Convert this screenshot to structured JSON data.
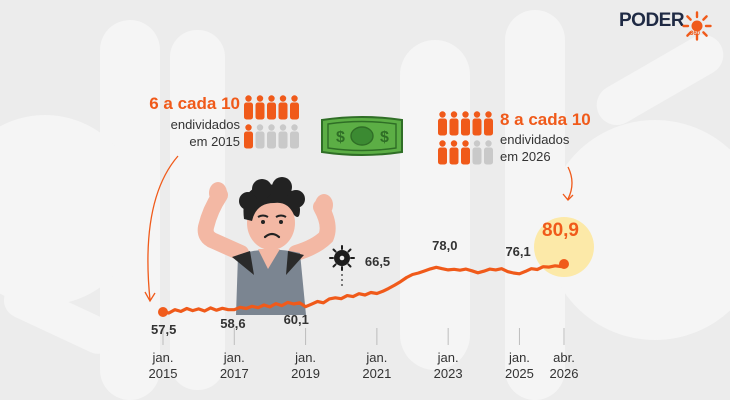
{
  "logo": {
    "word": "PODER",
    "sub": "360"
  },
  "callout_2015": {
    "big": "6 a cada 10",
    "line1": "endividados",
    "line2": "em 2015",
    "highlighted": 6,
    "total": 10
  },
  "callout_2026": {
    "big": "8 a cada 10",
    "line1": "endividados",
    "line2": "em 2026",
    "highlighted": 8,
    "total": 10
  },
  "colors": {
    "accent": "#f05a1a",
    "muted": "#c9c9c9",
    "text": "#333333",
    "highlight": "#fce9a8"
  },
  "chart_data": {
    "type": "line",
    "x_ticks": [
      {
        "date": "2015-01",
        "label": [
          "jan.",
          "2015"
        ]
      },
      {
        "date": "2017-01",
        "label": [
          "jan.",
          "2017"
        ]
      },
      {
        "date": "2019-01",
        "label": [
          "jan.",
          "2019"
        ]
      },
      {
        "date": "2021-01",
        "label": [
          "jan.",
          "2021"
        ]
      },
      {
        "date": "2023-01",
        "label": [
          "jan.",
          "2023"
        ]
      },
      {
        "date": "2025-01",
        "label": [
          "jan.",
          "2025"
        ]
      },
      {
        "date": "2026-04",
        "label": [
          "abr.",
          "2026"
        ]
      }
    ],
    "labeled_points": [
      {
        "date": "2015-01",
        "value": 57.5,
        "label": "57,5"
      },
      {
        "date": "2017-01",
        "value": 58.6,
        "label": "58,6"
      },
      {
        "date": "2019-01",
        "value": 60.1,
        "label": "60,1"
      },
      {
        "date": "2021-01",
        "value": 66.5,
        "label": "66,5"
      },
      {
        "date": "2023-01",
        "value": 78.0,
        "label": "78,0"
      },
      {
        "date": "2025-01",
        "value": 76.1,
        "label": "76,1"
      },
      {
        "date": "2026-04",
        "value": 80.9,
        "label": "80,9"
      }
    ],
    "series": [
      {
        "values": [
          [
            "2015-01",
            57.5
          ],
          [
            "2015-03",
            57.0
          ],
          [
            "2015-05",
            58.6
          ],
          [
            "2015-07",
            57.8
          ],
          [
            "2015-09",
            59.2
          ],
          [
            "2015-11",
            58.2
          ],
          [
            "2016-01",
            59.0
          ],
          [
            "2016-03",
            58.0
          ],
          [
            "2016-05",
            59.5
          ],
          [
            "2016-07",
            58.4
          ],
          [
            "2016-09",
            59.3
          ],
          [
            "2016-11",
            58.6
          ],
          [
            "2017-01",
            58.6
          ],
          [
            "2017-03",
            59.8
          ],
          [
            "2017-05",
            59.2
          ],
          [
            "2017-07",
            60.3
          ],
          [
            "2017-09",
            59.6
          ],
          [
            "2017-11",
            60.9
          ],
          [
            "2018-01",
            60.0
          ],
          [
            "2018-03",
            61.6
          ],
          [
            "2018-05",
            60.6
          ],
          [
            "2018-07",
            62.2
          ],
          [
            "2018-09",
            61.4
          ],
          [
            "2018-11",
            62.0
          ],
          [
            "2019-01",
            60.1
          ],
          [
            "2019-03",
            61.3
          ],
          [
            "2019-05",
            62.6
          ],
          [
            "2019-07",
            62.0
          ],
          [
            "2019-09",
            63.9
          ],
          [
            "2019-11",
            64.4
          ],
          [
            "2020-01",
            64.0
          ],
          [
            "2020-03",
            65.5
          ],
          [
            "2020-05",
            65.0
          ],
          [
            "2020-07",
            66.4
          ],
          [
            "2020-09",
            65.8
          ],
          [
            "2020-11",
            67.0
          ],
          [
            "2021-01",
            66.5
          ],
          [
            "2021-03",
            67.6
          ],
          [
            "2021-05",
            69.0
          ],
          [
            "2021-07",
            70.6
          ],
          [
            "2021-09",
            72.3
          ],
          [
            "2021-11",
            74.3
          ],
          [
            "2022-01",
            75.8
          ],
          [
            "2022-03",
            76.5
          ],
          [
            "2022-05",
            77.5
          ],
          [
            "2022-07",
            78.5
          ],
          [
            "2022-09",
            79.3
          ],
          [
            "2022-11",
            78.6
          ],
          [
            "2023-01",
            78.0
          ],
          [
            "2023-03",
            78.3
          ],
          [
            "2023-05",
            77.9
          ],
          [
            "2023-07",
            78.4
          ],
          [
            "2023-09",
            77.6
          ],
          [
            "2023-11",
            76.6
          ],
          [
            "2024-01",
            77.4
          ],
          [
            "2024-03",
            78.4
          ],
          [
            "2024-05",
            78.0
          ],
          [
            "2024-07",
            78.6
          ],
          [
            "2024-09",
            77.2
          ],
          [
            "2024-11",
            76.5
          ],
          [
            "2025-01",
            76.1
          ],
          [
            "2025-03",
            77.3
          ],
          [
            "2025-05",
            78.6
          ],
          [
            "2025-07",
            78.2
          ],
          [
            "2025-09",
            79.6
          ],
          [
            "2025-11",
            79.4
          ],
          [
            "2026-01",
            80.0
          ],
          [
            "2026-03",
            79.7
          ],
          [
            "2026-04",
            80.9
          ]
        ]
      }
    ],
    "grid": false,
    "legend": "none"
  }
}
